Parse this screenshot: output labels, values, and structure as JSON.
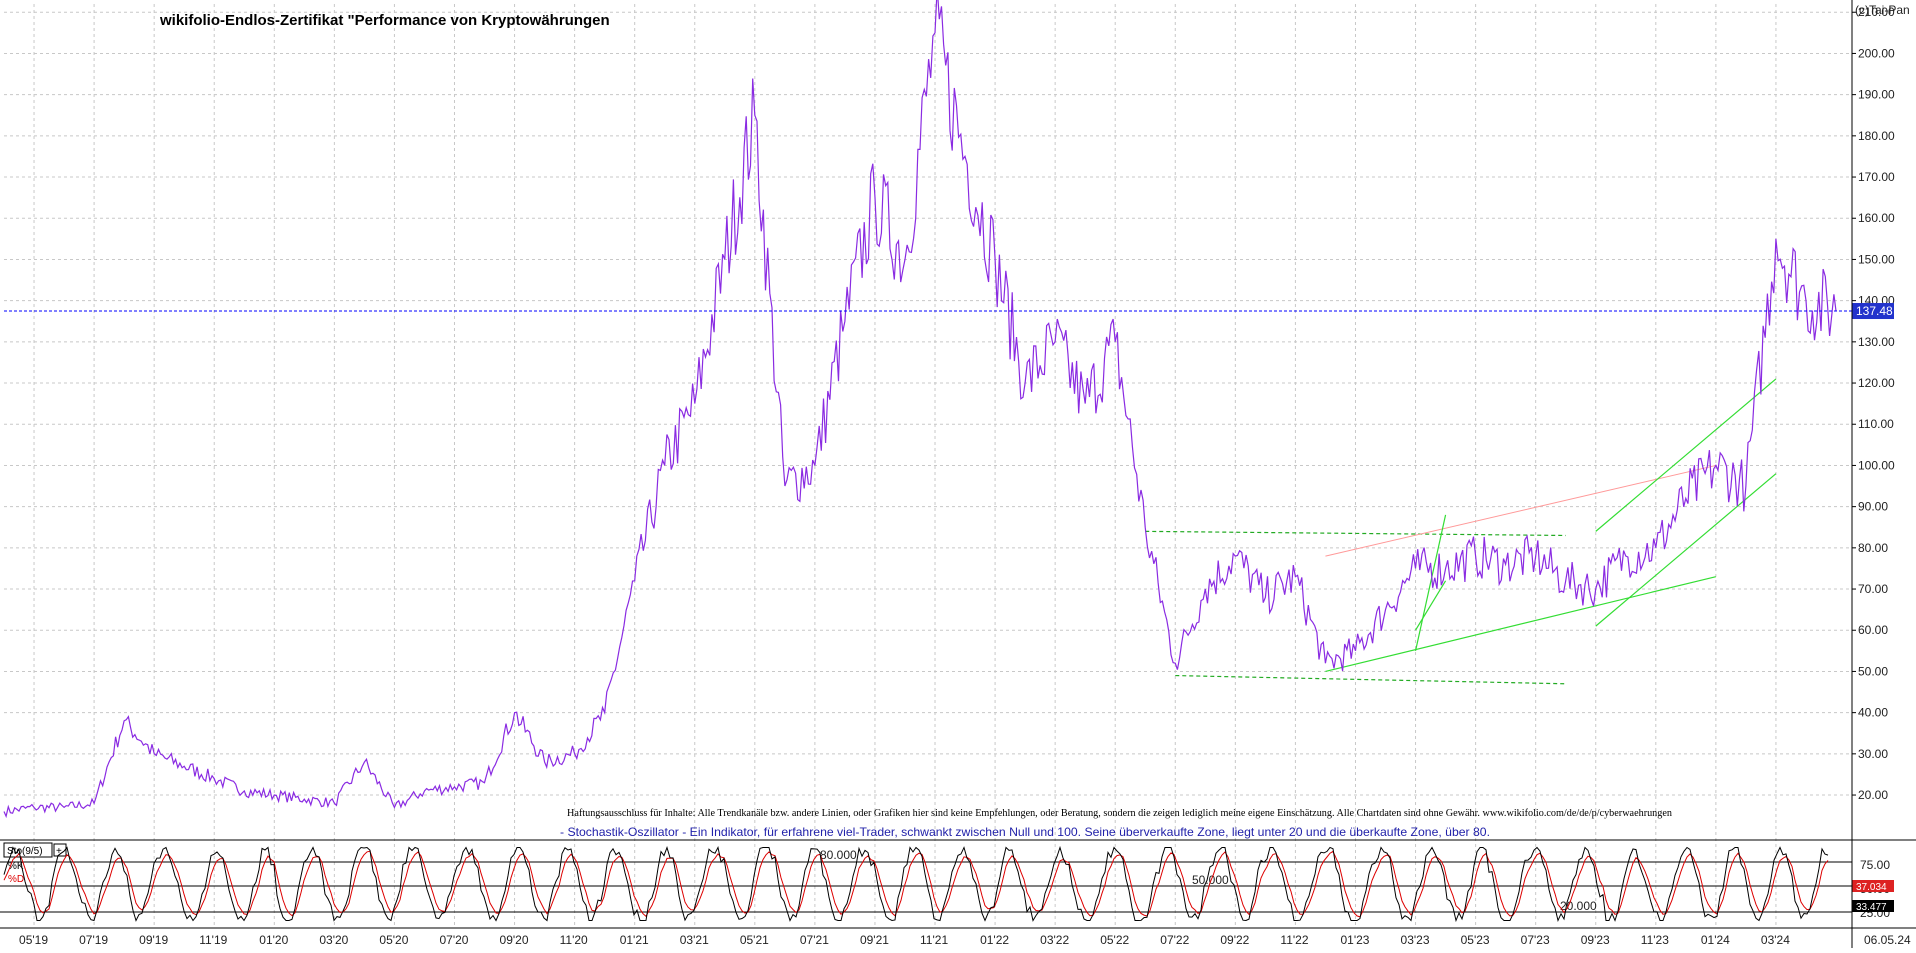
{
  "title": "wikifolio-Endlos-Zertifikat \"Performance von Kryptowährungen",
  "copyright": "(c)Tai-Pan",
  "last_price_label": "137.48",
  "disclaimer": "Haftungsausschluss für Inhalte: Alle Trendkanäle bzw. andere Linien, oder Grafiken hier sind keine Empfehlungen, oder Beratung, sondern die zeigen lediglich meine eigene Einschätzung. Alle Chartdaten sind ohne Gewähr.  www.wikifolio.com/de/de/p/cyberwaehrungen",
  "stoch_note": "- Stochastik-Oszillator - Ein Indikator, für erfahrene viel-Trader, schwankt zwischen Null und 100. Seine überverkaufte Zone, liegt unter 20 und die überkaufte Zone, über 80.",
  "indicator": {
    "label": "Sto(9/5)",
    "k_label": "%K",
    "d_label": "%D",
    "level_80": "80.000",
    "level_50": "50.000",
    "level_20": "20.000",
    "value_k": "37.034",
    "value_d": "33.477",
    "axis_ticks": [
      "75.00",
      "50.00",
      "25.00"
    ]
  },
  "date_label": "06.05.24",
  "colors": {
    "price_line": "#8a2be2",
    "current_line": "#0000ff",
    "trend_green_dashed": "#22aa22",
    "trend_green": "#33dd33",
    "trend_pink": "#ff9999",
    "stoch_k": "#000000",
    "stoch_d": "#dd0000"
  },
  "chart_data": {
    "type": "line",
    "x": [
      "04.19",
      "05.19",
      "06.19",
      "07.19",
      "08.19",
      "09.19",
      "10.19",
      "11.19",
      "12.19",
      "01.20",
      "02.20",
      "03.20",
      "04.20",
      "05.20",
      "06.20",
      "07.20",
      "08.20",
      "09.20",
      "10.20",
      "11.20",
      "12.20",
      "01.21",
      "02.21",
      "03.21",
      "04.21",
      "05.21",
      "06.21",
      "07.21",
      "08.21",
      "09.21",
      "10.21",
      "11.21",
      "12.21",
      "01.22",
      "02.22",
      "03.22",
      "04.22",
      "05.22",
      "06.22",
      "07.22",
      "08.22",
      "09.22",
      "10.22",
      "11.22",
      "12.22",
      "01.23",
      "02.23",
      "03.23",
      "04.23",
      "05.23",
      "06.23",
      "07.23",
      "08.23",
      "09.23",
      "10.23",
      "11.23",
      "12.23",
      "01.24",
      "02.24",
      "03.24",
      "04.24",
      "05.24"
    ],
    "series": [
      {
        "values": [
          16,
          17,
          17,
          18,
          38,
          30,
          27,
          24,
          21,
          20,
          19,
          18,
          28,
          17,
          21,
          22,
          23,
          40,
          28,
          30,
          40,
          72,
          100,
          115,
          150,
          185,
          95,
          100,
          135,
          165,
          150,
          205,
          175,
          150,
          120,
          130,
          115,
          130,
          85,
          52,
          70,
          78,
          68,
          73,
          52,
          55,
          65,
          75,
          75,
          78,
          76,
          78,
          72,
          70,
          78,
          80,
          92,
          100,
          95,
          155,
          140,
          137.48
        ]
      }
    ],
    "xtick_labels": [
      "05'19",
      "07'19",
      "09'19",
      "11'19",
      "01'20",
      "03'20",
      "05'20",
      "07'20",
      "09'20",
      "11'20",
      "01'21",
      "03'21",
      "05'21",
      "07'21",
      "09'21",
      "11'21",
      "01'22",
      "03'22",
      "05'22",
      "07'22",
      "09'22",
      "11'22",
      "01'23",
      "03'23",
      "05'23",
      "07'23",
      "09'23",
      "11'23",
      "01'24",
      "03'24"
    ],
    "ytick_labels": [
      "20.00",
      "30.00",
      "40.00",
      "50.00",
      "60.00",
      "70.00",
      "80.00",
      "90.00",
      "100.00",
      "110.00",
      "120.00",
      "130.00",
      "140.00",
      "150.00",
      "160.00",
      "170.00",
      "180.00",
      "190.00",
      "200.00",
      "210.00"
    ],
    "ylim": [
      12,
      212
    ],
    "current_value": 137.48,
    "grid": true,
    "trendlines": [
      {
        "kind": "green-dashed",
        "from": [
          "06.22",
          84
        ],
        "to": [
          "08.23",
          83
        ]
      },
      {
        "kind": "green-dashed",
        "from": [
          "07.22",
          49
        ],
        "to": [
          "08.23",
          47
        ]
      },
      {
        "kind": "green",
        "from": [
          "12.22",
          50
        ],
        "to": [
          "01.24",
          73
        ]
      },
      {
        "kind": "pink",
        "from": [
          "12.22",
          78
        ],
        "to": [
          "01.24",
          100
        ]
      },
      {
        "kind": "green",
        "from": [
          "03.23",
          55
        ],
        "to": [
          "04.23",
          88
        ]
      },
      {
        "kind": "green",
        "from": [
          "03.23",
          60
        ],
        "to": [
          "04.23",
          72
        ]
      },
      {
        "kind": "green",
        "from": [
          "09.23",
          84
        ],
        "to": [
          "03.24",
          121
        ]
      },
      {
        "kind": "green",
        "from": [
          "09.23",
          61
        ],
        "to": [
          "03.24",
          98
        ]
      }
    ]
  }
}
